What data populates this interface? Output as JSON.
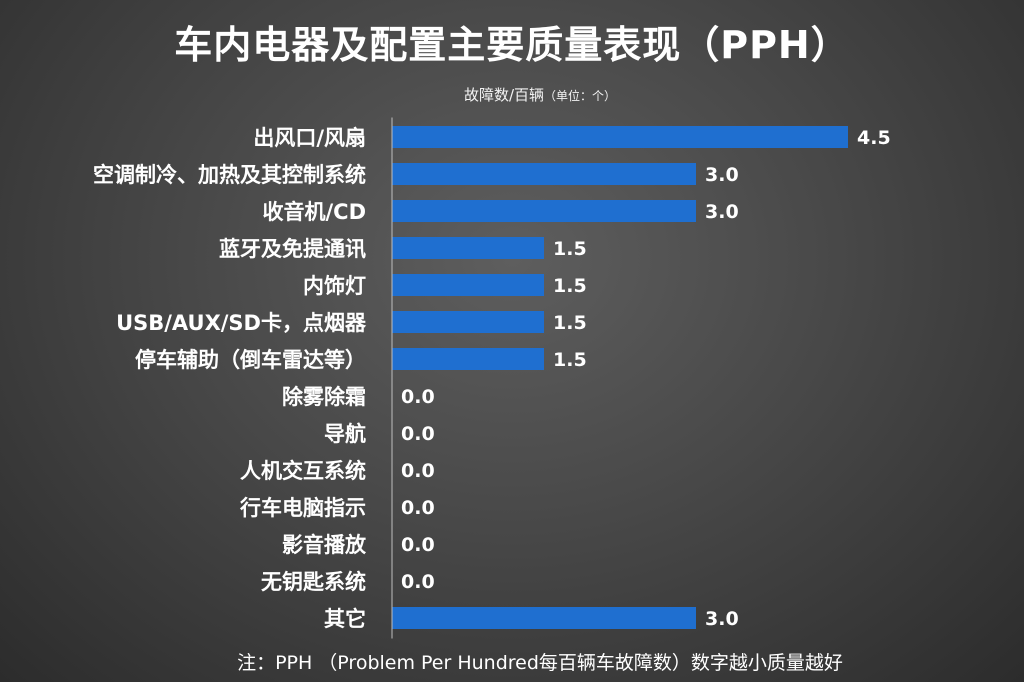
{
  "chart_data": {
    "type": "bar",
    "orientation": "horizontal",
    "title": "车内电器及配置主要质量表现（PPH）",
    "subtitle": "故障数/百辆",
    "unit_note": "（单位：个）",
    "categories": [
      "出风口/风扇",
      "空调制冷、加热及其控制系统",
      "收音机/CD",
      "蓝牙及免提通讯",
      "内饰灯",
      "USB/AUX/SD卡，点烟器",
      "停车辅助（倒车雷达等）",
      "除雾除霜",
      "导航",
      "人机交互系统",
      "行车电脑指示",
      "影音播放",
      "无钥匙系统",
      "其它"
    ],
    "values": [
      4.5,
      3.0,
      3.0,
      1.5,
      1.5,
      1.5,
      1.5,
      0.0,
      0.0,
      0.0,
      0.0,
      0.0,
      0.0,
      3.0
    ],
    "value_labels": [
      "4.5",
      "3.0",
      "3.0",
      "1.5",
      "1.5",
      "1.5",
      "1.5",
      "0.0",
      "0.0",
      "0.0",
      "0.0",
      "0.0",
      "0.0",
      "3.0"
    ],
    "xlim": [
      0,
      4.5
    ],
    "bar_color": "#1f6fd0",
    "grid": false,
    "legend": "none"
  },
  "footnote": "注：PPH （Problem Per Hundred每百辆车故障数）数字越小质量越好"
}
